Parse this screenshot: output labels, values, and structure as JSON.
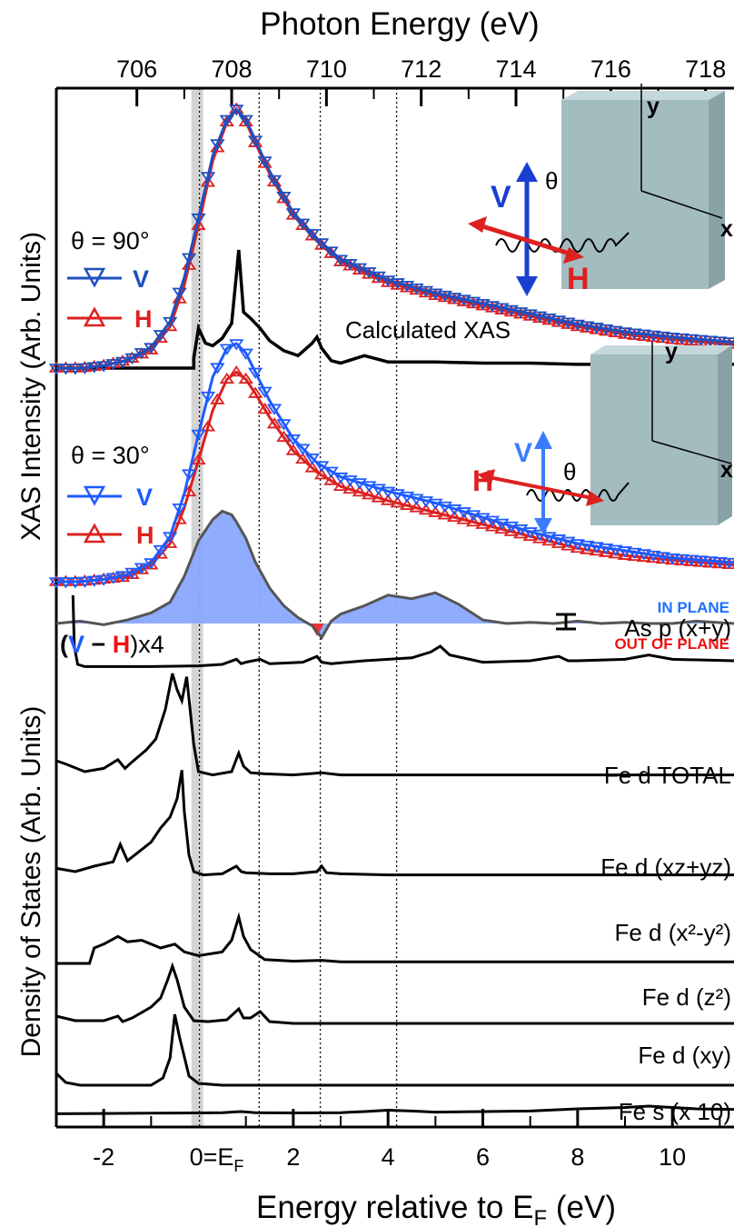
{
  "chart_data": {
    "type": "line",
    "top_axis": {
      "label": "Photon Energy (eV)",
      "ticks": [
        "706",
        "708",
        "710",
        "712",
        "714",
        "716",
        "718"
      ],
      "tick_values": [
        706,
        708,
        710,
        712,
        714,
        716,
        718
      ]
    },
    "bottom_axis": {
      "label_prefix": "Energy relative to E",
      "label_sub": "F",
      "label_suffix": " (eV)",
      "ticks": [
        "-2",
        "0=E",
        "2",
        "4",
        "6",
        "8",
        "10"
      ],
      "ef_subscript": "F",
      "tick_values": [
        -2,
        0,
        2,
        4,
        6,
        8,
        10
      ],
      "xlim": [
        -3,
        11.3
      ]
    },
    "upper_ylabel": "XAS Intensity (Arb. Units)",
    "lower_ylabel": "Density of States (Arb. Units)",
    "reference_lines": [
      0.02,
      1.28,
      2.57,
      4.18
    ],
    "ef_shaded_band": [
      -0.15,
      0.1
    ],
    "panels": {
      "theta90": {
        "label": "θ = 90°",
        "series": [
          {
            "name": "V",
            "color": "#1f4fbf",
            "x": [
              -3.0,
              -2.5,
              -2.0,
              -1.5,
              -1.0,
              -0.6,
              -0.3,
              0.0,
              0.3,
              0.6,
              0.8,
              1.0,
              1.2,
              1.5,
              2.0,
              2.5,
              3.0,
              4.0,
              5.0,
              6.0,
              7.0,
              8.0,
              9.0,
              10.0,
              11.3
            ],
            "y": [
              0.0,
              0.0,
              0.01,
              0.03,
              0.08,
              0.18,
              0.35,
              0.58,
              0.82,
              0.96,
              1.0,
              0.96,
              0.88,
              0.76,
              0.6,
              0.5,
              0.42,
              0.34,
              0.29,
              0.25,
              0.21,
              0.17,
              0.14,
              0.12,
              0.1
            ]
          },
          {
            "name": "H",
            "color": "#dd2020",
            "x": [
              -3.0,
              -2.5,
              -2.0,
              -1.5,
              -1.0,
              -0.6,
              -0.3,
              0.0,
              0.3,
              0.6,
              0.8,
              1.0,
              1.2,
              1.5,
              2.0,
              2.5,
              3.0,
              4.0,
              5.0,
              6.0,
              7.0,
              8.0,
              9.0,
              10.0,
              11.3
            ],
            "y": [
              0.0,
              0.0,
              0.01,
              0.03,
              0.07,
              0.16,
              0.32,
              0.55,
              0.8,
              0.95,
              1.0,
              0.95,
              0.87,
              0.75,
              0.59,
              0.49,
              0.41,
              0.33,
              0.28,
              0.24,
              0.2,
              0.16,
              0.13,
              0.11,
              0.09
            ]
          }
        ],
        "calculated": {
          "name": "Calculated XAS",
          "x": [
            -3.0,
            -0.1,
            -0.1,
            0.0,
            0.15,
            0.3,
            0.5,
            0.7,
            0.8,
            0.85,
            0.95,
            1.1,
            1.3,
            1.5,
            1.8,
            2.1,
            2.4,
            2.5,
            2.6,
            2.8,
            3.0,
            3.5,
            4.0,
            5.0,
            6.0,
            7.0,
            8.0,
            9.0,
            10.0,
            11.3
          ],
          "y": [
            0.0,
            0.0,
            0.08,
            0.32,
            0.2,
            0.18,
            0.24,
            0.36,
            0.75,
            0.95,
            0.45,
            0.4,
            0.32,
            0.22,
            0.14,
            0.1,
            0.2,
            0.25,
            0.16,
            0.06,
            0.04,
            0.1,
            0.05,
            0.05,
            0.04,
            0.04,
            0.03,
            0.03,
            0.03,
            0.03
          ]
        }
      },
      "theta30": {
        "label": "θ = 30°",
        "series": [
          {
            "name": "V",
            "color": "#1e5bff",
            "x": [
              -3.0,
              -2.5,
              -2.0,
              -1.5,
              -1.0,
              -0.6,
              -0.3,
              0.0,
              0.3,
              0.6,
              0.8,
              1.0,
              1.2,
              1.5,
              2.0,
              2.5,
              3.0,
              4.0,
              5.0,
              6.0,
              7.0,
              8.0,
              9.0,
              10.0,
              11.3
            ],
            "y": [
              0.0,
              0.0,
              0.01,
              0.03,
              0.08,
              0.19,
              0.37,
              0.62,
              0.86,
              0.98,
              1.0,
              0.96,
              0.88,
              0.76,
              0.6,
              0.5,
              0.44,
              0.38,
              0.33,
              0.27,
              0.21,
              0.16,
              0.13,
              0.1,
              0.08
            ]
          },
          {
            "name": "H",
            "color": "#dd2020",
            "x": [
              -3.0,
              -2.5,
              -2.0,
              -1.5,
              -1.0,
              -0.6,
              -0.3,
              0.0,
              0.3,
              0.6,
              0.8,
              1.0,
              1.2,
              1.5,
              2.0,
              2.5,
              3.0,
              4.0,
              5.0,
              6.0,
              7.0,
              8.0,
              9.0,
              10.0,
              11.3
            ],
            "y": [
              0.0,
              0.0,
              0.01,
              0.02,
              0.07,
              0.16,
              0.31,
              0.51,
              0.72,
              0.85,
              0.88,
              0.85,
              0.79,
              0.69,
              0.55,
              0.46,
              0.4,
              0.34,
              0.29,
              0.24,
              0.19,
              0.14,
              0.11,
              0.09,
              0.07
            ]
          }
        ]
      }
    },
    "difference": {
      "label_open": "(",
      "label_v": "V",
      "label_minus": " − ",
      "label_h": "H",
      "label_close": ")x4",
      "positive_label": "IN PLANE",
      "negative_label": "OUT OF PLANE",
      "positive_color": "#1e6fff",
      "negative_color": "#ee1111",
      "x": [
        -3.0,
        -2.5,
        -2.0,
        -1.5,
        -1.0,
        -0.6,
        -0.3,
        0.0,
        0.3,
        0.5,
        0.7,
        0.8,
        1.0,
        1.2,
        1.5,
        1.8,
        2.1,
        2.4,
        2.6,
        2.8,
        3.0,
        3.5,
        4.0,
        4.5,
        5.0,
        5.5,
        6.0,
        6.5,
        7.0,
        7.5,
        8.0,
        8.5,
        9.0,
        9.5,
        10.0,
        10.5,
        11.3
      ],
      "y": [
        0.0,
        0.02,
        -0.01,
        0.03,
        0.09,
        0.18,
        0.4,
        0.7,
        0.88,
        0.95,
        0.92,
        0.86,
        0.72,
        0.52,
        0.3,
        0.15,
        0.05,
        -0.02,
        -0.12,
        0.02,
        0.08,
        0.15,
        0.24,
        0.21,
        0.26,
        0.16,
        0.03,
        0.0,
        0.01,
        0.0,
        0.02,
        0.0,
        0.01,
        0.0,
        0.0,
        0.02,
        0.0
      ]
    },
    "dos": [
      {
        "name": "As p (x+y)",
        "x": [
          -2.65,
          -2.62,
          -2.55,
          -2.4,
          -2.0,
          -1.0,
          0.0,
          0.5,
          0.8,
          0.9,
          1.0,
          1.3,
          1.5,
          2.2,
          2.5,
          2.6,
          2.8,
          3.5,
          4.5,
          4.9,
          5.1,
          5.3,
          6.0,
          7.0,
          7.6,
          7.8,
          8.0,
          9.0,
          9.5,
          10.0,
          11.3
        ],
        "y": [
          1.0,
          0.3,
          0.05,
          0.02,
          0.02,
          0.02,
          0.03,
          0.05,
          0.12,
          0.06,
          0.08,
          0.12,
          0.06,
          0.08,
          0.16,
          0.08,
          0.06,
          0.1,
          0.14,
          0.22,
          0.3,
          0.18,
          0.08,
          0.1,
          0.16,
          0.1,
          0.1,
          0.12,
          0.18,
          0.12,
          0.1
        ]
      },
      {
        "name": "Fe d TOTAL",
        "x": [
          -3.0,
          -2.8,
          -2.4,
          -2.0,
          -1.7,
          -1.55,
          -1.4,
          -1.1,
          -0.9,
          -0.7,
          -0.55,
          -0.45,
          -0.35,
          -0.25,
          -0.1,
          0.0,
          0.3,
          0.7,
          0.85,
          0.95,
          1.1,
          1.4,
          2.0,
          2.6,
          3.0,
          4.0,
          6.0,
          8.0,
          10.0,
          11.3
        ],
        "y": [
          0.15,
          0.12,
          0.05,
          0.08,
          0.16,
          0.08,
          0.14,
          0.25,
          0.35,
          0.62,
          0.95,
          0.8,
          0.7,
          0.92,
          0.3,
          0.05,
          0.02,
          0.05,
          0.22,
          0.1,
          0.04,
          0.03,
          0.02,
          0.04,
          0.02,
          0.02,
          0.02,
          0.02,
          0.02,
          0.02
        ]
      },
      {
        "name": "Fe d (xz+yz)",
        "x": [
          -3.0,
          -2.6,
          -2.2,
          -1.8,
          -1.65,
          -1.5,
          -1.0,
          -0.8,
          -0.6,
          -0.45,
          -0.35,
          -0.3,
          -0.2,
          -0.1,
          0.1,
          0.5,
          0.8,
          0.9,
          1.0,
          1.5,
          2.0,
          2.5,
          2.6,
          2.7,
          3.0,
          4.0,
          6.0,
          8.0,
          10.0,
          11.3
        ],
        "y": [
          0.08,
          0.05,
          0.1,
          0.14,
          0.3,
          0.15,
          0.32,
          0.45,
          0.55,
          0.72,
          0.98,
          0.6,
          0.2,
          0.05,
          0.02,
          0.03,
          0.1,
          0.05,
          0.04,
          0.03,
          0.03,
          0.05,
          0.1,
          0.04,
          0.03,
          0.02,
          0.02,
          0.02,
          0.02,
          0.02
        ]
      },
      {
        "name": "Fe d (x²-y²)",
        "x": [
          -3.0,
          -2.3,
          -2.2,
          -2.0,
          -1.7,
          -1.5,
          -1.2,
          -0.8,
          -0.5,
          -0.3,
          0.0,
          0.5,
          0.7,
          0.85,
          0.95,
          1.1,
          1.4,
          2.0,
          2.6,
          3.0,
          4.0,
          6.0,
          8.0,
          10.0,
          11.3
        ],
        "y": [
          0.0,
          0.0,
          0.2,
          0.25,
          0.35,
          0.28,
          0.3,
          0.2,
          0.25,
          0.15,
          0.1,
          0.15,
          0.3,
          0.6,
          0.35,
          0.18,
          0.05,
          0.03,
          0.04,
          0.02,
          0.02,
          0.02,
          0.02,
          0.02,
          0.02
        ]
      },
      {
        "name": "Fe d (z²)",
        "x": [
          -3.0,
          -2.6,
          -2.0,
          -1.7,
          -1.6,
          -1.4,
          -1.0,
          -0.8,
          -0.65,
          -0.55,
          -0.45,
          -0.3,
          -0.1,
          0.2,
          0.6,
          0.85,
          0.95,
          1.1,
          1.3,
          1.5,
          2.0,
          3.0,
          4.0,
          6.0,
          8.0,
          10.0,
          11.3
        ],
        "y": [
          0.1,
          0.05,
          0.05,
          0.1,
          0.04,
          0.08,
          0.2,
          0.3,
          0.5,
          0.65,
          0.5,
          0.2,
          0.05,
          0.04,
          0.06,
          0.18,
          0.08,
          0.08,
          0.15,
          0.04,
          0.02,
          0.02,
          0.02,
          0.02,
          0.02,
          0.02,
          0.02
        ]
      },
      {
        "name": "Fe d (xy)",
        "x": [
          -3.0,
          -2.8,
          -2.5,
          -2.0,
          -1.5,
          -1.0,
          -0.75,
          -0.6,
          -0.5,
          -0.4,
          -0.2,
          0.0,
          0.5,
          1.0,
          2.0,
          3.0,
          4.0,
          6.0,
          8.0,
          10.0,
          11.3
        ],
        "y": [
          0.15,
          0.05,
          0.02,
          0.02,
          0.02,
          0.02,
          0.1,
          0.32,
          0.8,
          0.55,
          0.12,
          0.04,
          0.02,
          0.02,
          0.02,
          0.02,
          0.02,
          0.02,
          0.02,
          0.02,
          0.02
        ]
      },
      {
        "name": "Fe s (x 10)",
        "x": [
          -3.0,
          -2.0,
          -1.0,
          0.0,
          0.5,
          0.9,
          1.2,
          2.0,
          3.0,
          3.5,
          4.0,
          4.5,
          5.0,
          6.0,
          7.0,
          8.0,
          9.0,
          9.5,
          10.0,
          10.5,
          11.3
        ],
        "y": [
          0.02,
          0.03,
          0.04,
          0.05,
          0.06,
          0.1,
          0.06,
          0.05,
          0.06,
          0.1,
          0.15,
          0.12,
          0.08,
          0.1,
          0.12,
          0.2,
          0.25,
          0.3,
          0.25,
          0.2,
          0.18
        ]
      }
    ],
    "dos_ef_subscript": "F",
    "geometry_inset": {
      "axes": [
        "x",
        "y"
      ],
      "angle": "θ",
      "polarizations": [
        "V",
        "H"
      ]
    },
    "error_bar": "present"
  }
}
